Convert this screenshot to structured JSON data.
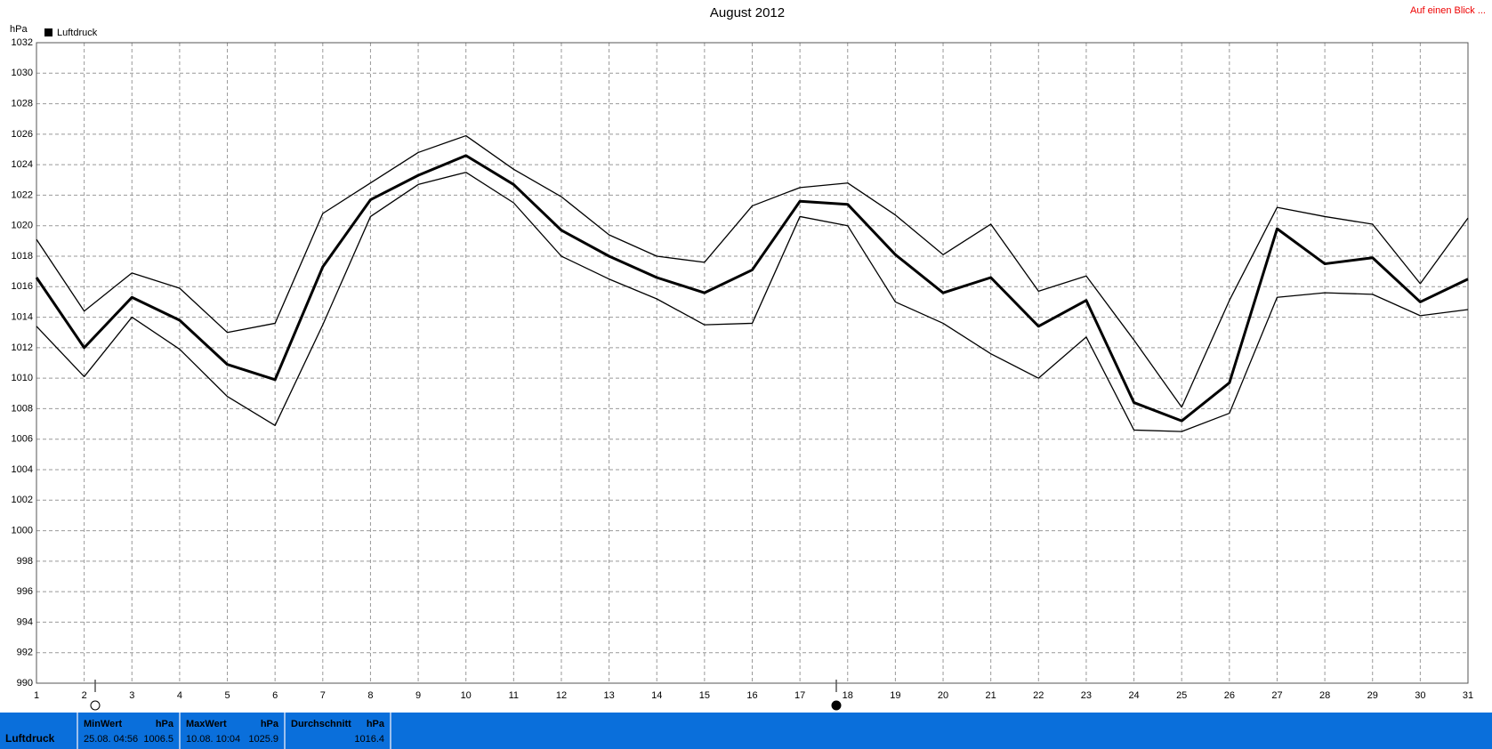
{
  "chart_data": {
    "type": "line",
    "title": "August 2012",
    "link": "Auf einen Blick ...",
    "y_label": "hPa",
    "x": [
      1,
      2,
      3,
      4,
      5,
      6,
      7,
      8,
      9,
      10,
      11,
      12,
      13,
      14,
      15,
      16,
      17,
      18,
      19,
      20,
      21,
      22,
      23,
      24,
      25,
      26,
      27,
      28,
      29,
      30,
      31
    ],
    "xlim": [
      1,
      31
    ],
    "xticks": [
      1,
      2,
      3,
      4,
      5,
      6,
      7,
      8,
      9,
      10,
      11,
      12,
      13,
      14,
      15,
      16,
      17,
      18,
      19,
      20,
      21,
      22,
      23,
      24,
      25,
      26,
      27,
      28,
      29,
      30,
      31
    ],
    "ylim": [
      990,
      1032
    ],
    "yticks": [
      990,
      992,
      994,
      996,
      998,
      1000,
      1002,
      1004,
      1006,
      1008,
      1010,
      1012,
      1014,
      1016,
      1018,
      1020,
      1022,
      1024,
      1026,
      1028,
      1030,
      1032
    ],
    "grid": true,
    "legend": "top-left",
    "series": [
      {
        "name": "Luftdruck",
        "color": "#000000",
        "width": 3,
        "values": [
          1016.6,
          1012.0,
          1015.3,
          1013.8,
          1010.9,
          1009.9,
          1017.3,
          1021.7,
          1023.3,
          1024.6,
          1022.7,
          1019.7,
          1018.0,
          1016.6,
          1015.6,
          1017.1,
          1021.6,
          1021.4,
          1018.1,
          1015.6,
          1016.6,
          1013.4,
          1015.1,
          1008.4,
          1007.2,
          1009.7,
          1019.8,
          1017.5,
          1017.9,
          1015.0,
          1016.5
        ]
      },
      {
        "color": "#000000",
        "width": 1.3,
        "values": [
          1019.1,
          1014.4,
          1016.9,
          1015.9,
          1013.0,
          1013.6,
          1020.8,
          1022.8,
          1024.8,
          1025.9,
          1023.7,
          1021.9,
          1019.4,
          1018.0,
          1017.6,
          1021.3,
          1022.5,
          1022.8,
          1020.7,
          1018.1,
          1020.1,
          1015.7,
          1016.7,
          1012.5,
          1008.1,
          1015.1,
          1021.2,
          1020.6,
          1020.1,
          1016.2,
          1020.5
        ]
      },
      {
        "color": "#000000",
        "width": 1.3,
        "values": [
          1013.4,
          1010.1,
          1014.0,
          1011.9,
          1008.8,
          1006.9,
          1013.5,
          1020.6,
          1022.7,
          1023.5,
          1021.5,
          1018.0,
          1016.5,
          1015.2,
          1013.5,
          1013.6,
          1020.6,
          1020.0,
          1015.0,
          1013.6,
          1011.6,
          1010.0,
          1012.7,
          1006.6,
          1006.5,
          1007.7,
          1015.3,
          1015.6,
          1015.5,
          1014.1,
          1014.5
        ]
      }
    ]
  },
  "stats": {
    "label": "Luftdruck",
    "columns": [
      {
        "title": "MinWert",
        "unit": "hPa",
        "date": "25.08.  04:56",
        "value": "1006.5"
      },
      {
        "title": "MaxWert",
        "unit": "hPa",
        "date": "10.08.  10:04",
        "value": "1025.9"
      },
      {
        "title": "Durchschnitt",
        "unit": "hPa",
        "value": "1016.4"
      }
    ]
  }
}
